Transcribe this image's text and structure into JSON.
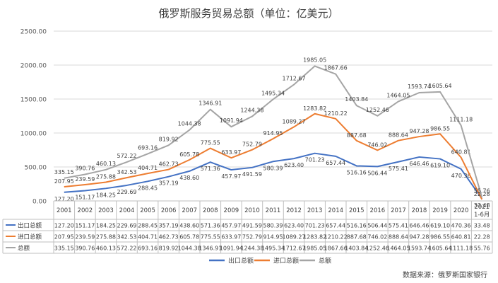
{
  "chart_data": {
    "type": "line",
    "title": "俄罗斯服务贸易总额（单位：亿美元）",
    "source": "数据来源：俄罗斯国家银行",
    "ylim": [
      0,
      2500
    ],
    "yticks": [
      "0.00",
      "500.00",
      "1000.00",
      "1500.00",
      "2000.00",
      "2500.00"
    ],
    "grid": true,
    "legend": "bottom",
    "x": [
      "2001",
      "2002",
      "2003",
      "2004",
      "2005",
      "2006",
      "2007",
      "2008",
      "2009",
      "2010",
      "2011",
      "2012",
      "2013",
      "2014",
      "2015",
      "2016",
      "2017",
      "2018",
      "2019",
      "2020",
      "2021 1-6月"
    ],
    "series": [
      {
        "name": "出口总额",
        "color": "#4472c4",
        "values": [
          127.2,
          151.17,
          184.25,
          229.69,
          288.45,
          357.19,
          438.6,
          571.36,
          457.97,
          491.59,
          580.39,
          623.4,
          701.23,
          657.44,
          516.16,
          506.44,
          575.41,
          646.46,
          619.1,
          470.36,
          33.48
        ],
        "labels": [
          "127.20",
          "151.17",
          "184.25",
          "229.69",
          "288.45",
          "357.19",
          "438.60",
          "571.36",
          "457.97",
          "491.59",
          "580.39",
          "623.40",
          "701.23",
          "657.44",
          "516.16",
          "506.44",
          "575.41",
          "646.46",
          "619.10",
          "470.36",
          "33.48"
        ]
      },
      {
        "name": "进口总额",
        "color": "#ed7d31",
        "values": [
          207.95,
          239.59,
          275.88,
          342.53,
          404.71,
          462.73,
          605.78,
          775.55,
          633.97,
          752.79,
          914.95,
          1089.27,
          1283.82,
          1210.22,
          887.68,
          746.02,
          888.64,
          947.28,
          986.55,
          640.81,
          22.28
        ],
        "labels": [
          "207.95",
          "239.59",
          "275.88",
          "342.53",
          "404.71",
          "462.73",
          "605.78",
          "775.55",
          "633.97",
          "752.79",
          "914.95",
          "1089.27",
          "1283.82",
          "1210.22",
          "887.68",
          "746.02",
          "888.64",
          "947.28",
          "986.55",
          "640.81",
          "22.28"
        ]
      },
      {
        "name": "总额",
        "color": "#a5a5a5",
        "values": [
          335.15,
          390.76,
          460.13,
          572.22,
          693.16,
          819.92,
          1044.38,
          1346.91,
          1091.94,
          1244.38,
          1495.34,
          1712.67,
          1985.05,
          1867.66,
          1403.84,
          1252.46,
          1464.05,
          1593.74,
          1605.64,
          1111.18,
          55.76
        ],
        "labels": [
          "335.15",
          "390.76",
          "460.13",
          "572.22",
          "693.16",
          "819.92",
          "1044.38",
          "1346.91",
          "1091.94",
          "1244.38",
          "1495.34",
          "1712.67",
          "1985.05",
          "1867.66",
          "1403.84",
          "1252.46",
          "1464.05",
          "1593.74",
          "1605.64",
          "1111.18",
          "55.76"
        ]
      }
    ]
  }
}
